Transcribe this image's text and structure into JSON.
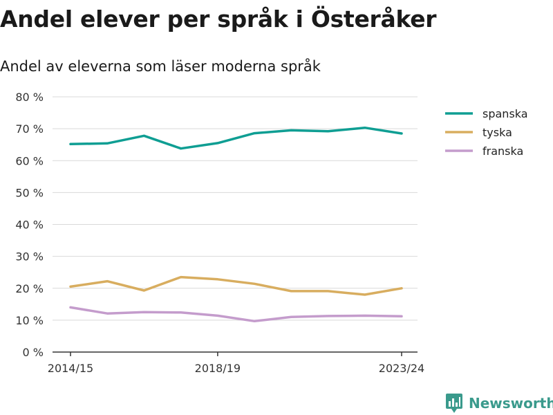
{
  "title": "Andel elever per språk i Österåker",
  "subtitle": "Andel av eleverna som läser moderna språk",
  "brand": {
    "name": "Newsworthy",
    "color": "#3a9a8c",
    "icon": "newsworthy-logo-icon"
  },
  "chart_data": {
    "type": "line",
    "x": [
      "2014/15",
      "2015/16",
      "2016/17",
      "2017/18",
      "2018/19",
      "2019/20",
      "2020/21",
      "2021/22",
      "2022/23",
      "2023/24"
    ],
    "x_tick_labels": [
      "2014/15",
      "2018/19",
      "2023/24"
    ],
    "ylim": [
      0,
      80
    ],
    "y_ticks": [
      0,
      10,
      20,
      30,
      40,
      50,
      60,
      70,
      80
    ],
    "y_tick_labels": [
      "0 %",
      "10 %",
      "20 %",
      "30 %",
      "40 %",
      "50 %",
      "60 %",
      "70 %",
      "80 %"
    ],
    "grid": true,
    "legend_position": "right",
    "series": [
      {
        "name": "spanska",
        "color": "#0f9e93",
        "values": [
          65.2,
          65.4,
          67.8,
          63.8,
          65.5,
          68.6,
          69.5,
          69.2,
          70.3,
          68.5
        ]
      },
      {
        "name": "tyska",
        "color": "#d8ad5f",
        "values": [
          20.5,
          22.2,
          19.3,
          23.5,
          22.8,
          21.4,
          19.1,
          19.1,
          18.0,
          20.0
        ]
      },
      {
        "name": "franska",
        "color": "#c49ccc",
        "values": [
          14.0,
          12.1,
          12.5,
          12.4,
          11.4,
          9.7,
          11.0,
          11.3,
          11.4,
          11.2
        ]
      }
    ]
  }
}
